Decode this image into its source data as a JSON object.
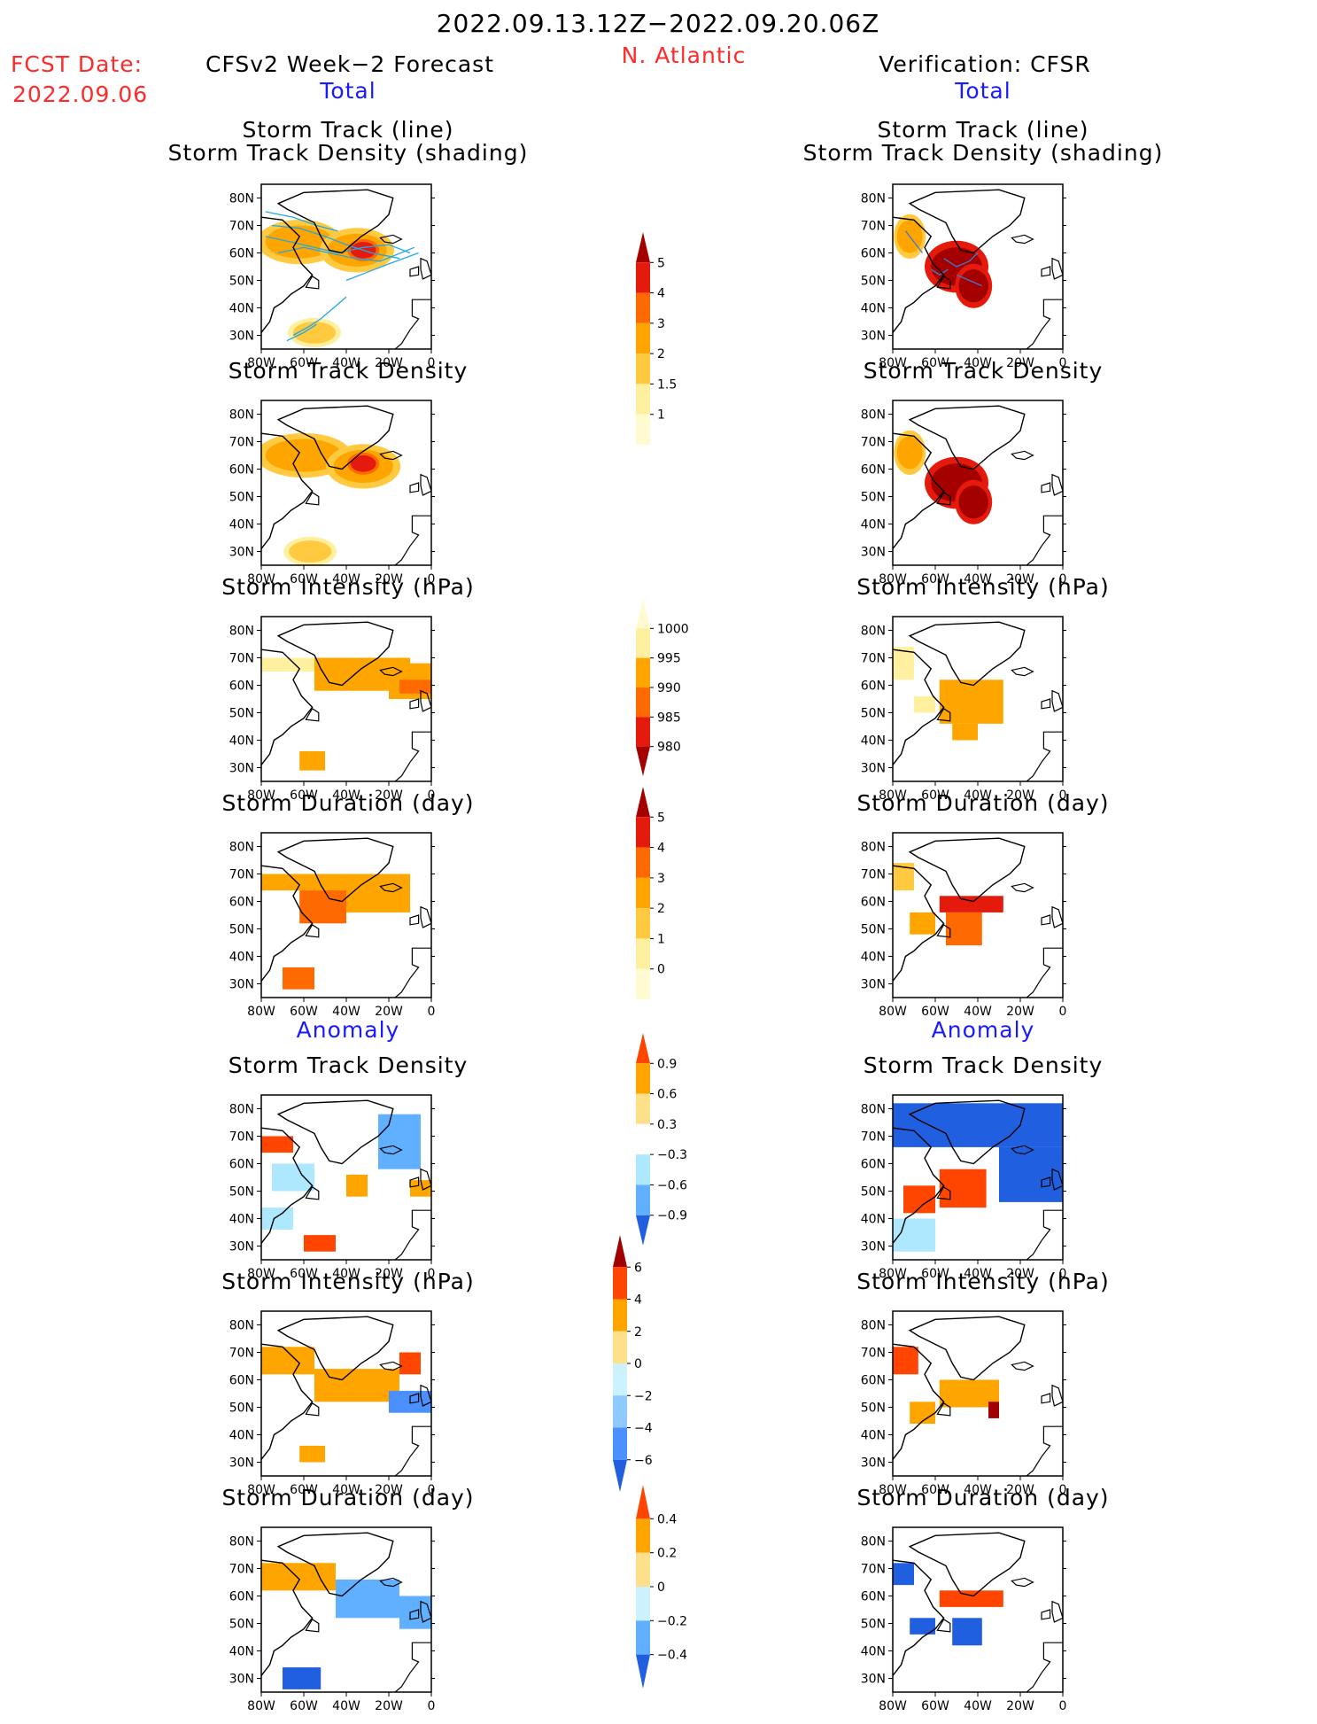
{
  "header": {
    "date_range": "2022.09.13.12Z−2022.09.20.06Z",
    "region": "N. Atlantic",
    "fcst_label": "FCST Date:",
    "fcst_date": "2022.09.06",
    "left_title": "CFSv2 Week−2 Forecast",
    "right_title": "Verification: CFSR",
    "total_left": "Total",
    "total_right": "Total",
    "anomaly_left": "Anomaly",
    "anomaly_right": "Anomaly"
  },
  "colors": {
    "title_red": "#ff2a2a",
    "title_blue": "#1a1aff"
  },
  "panels": {
    "track_line": "Storm Track (line)",
    "track_density_shading": "Storm Track Density (shading)",
    "track_density": "Storm Track Density",
    "intensity": "Storm Intensity (hPa)",
    "duration": "Storm Duration (day)"
  },
  "axes": {
    "lat_ticks": [
      "80N",
      "70N",
      "60N",
      "50N",
      "40N",
      "30N"
    ],
    "lon_ticks": [
      "80W",
      "60W",
      "40W",
      "20W",
      "0"
    ]
  },
  "colorbars": [
    {
      "name": "density",
      "labels": [
        "5",
        "4",
        "3",
        "2",
        "1.5",
        "1"
      ],
      "colors": [
        "#a50000",
        "#e41a0c",
        "#ff6a00",
        "#ffa500",
        "#ffc940",
        "#fff0a0",
        "#fffad0"
      ]
    },
    {
      "name": "intensity",
      "labels": [
        "1000",
        "995",
        "990",
        "985",
        "980"
      ],
      "colors": [
        "#fffad0",
        "#fff0a0",
        "#ffa500",
        "#ff6a00",
        "#e41a0c",
        "#a50000"
      ]
    },
    {
      "name": "duration",
      "labels": [
        "5",
        "4",
        "3",
        "2",
        "1",
        "0"
      ],
      "colors": [
        "#a50000",
        "#e41a0c",
        "#ff6a00",
        "#ffa500",
        "#ffc940",
        "#fff0a0",
        "#fffad0"
      ]
    },
    {
      "name": "density_anom",
      "labels": [
        "0.9",
        "0.6",
        "0.3",
        "−0.3",
        "−0.6",
        "−0.9"
      ],
      "colors": [
        "#ff4500",
        "#ffa500",
        "#ffe08a",
        "#ffffff",
        "#aee8ff",
        "#60b0ff",
        "#2060e0"
      ]
    },
    {
      "name": "intensity_anom",
      "labels": [
        "6",
        "4",
        "2",
        "0",
        "−2",
        "−4",
        "−6"
      ],
      "colors": [
        "#a00000",
        "#ff4500",
        "#ffa500",
        "#ffe08a",
        "#ccf2ff",
        "#8ecaff",
        "#4a90ff",
        "#2060e0"
      ]
    },
    {
      "name": "duration_anom",
      "labels": [
        "0.4",
        "0.2",
        "0",
        "−0.2",
        "−0.4"
      ],
      "colors": [
        "#ff4500",
        "#ffa500",
        "#ffe08a",
        "#ccf2ff",
        "#60b0ff",
        "#2060e0"
      ]
    }
  ],
  "chart_data": [
    {
      "type": "heatmap",
      "panel": "left-total-track",
      "title": "Storm Track (line) / Storm Track Density (shading)",
      "xlabel": "",
      "ylabel": "",
      "xlim": [
        -80,
        0
      ],
      "ylim": [
        25,
        85
      ],
      "blobs": [
        {
          "lon": -62,
          "lat": 64,
          "rx": 16,
          "ry": 6,
          "v": 2
        },
        {
          "lon": -35,
          "lat": 61,
          "rx": 14,
          "ry": 6,
          "v": 2
        },
        {
          "lon": -32,
          "lat": 61,
          "rx": 6,
          "ry": 3,
          "v": 4
        },
        {
          "lon": -55,
          "lat": 31,
          "rx": 10,
          "ry": 4,
          "v": 1.5
        }
      ]
    },
    {
      "type": "heatmap",
      "panel": "right-total-track",
      "title": "Storm Track (line) / Storm Track Density (shading)",
      "xlim": [
        -80,
        0
      ],
      "ylim": [
        25,
        85
      ],
      "blobs": [
        {
          "lon": -72,
          "lat": 66,
          "rx": 6,
          "ry": 6,
          "v": 2
        },
        {
          "lon": -50,
          "lat": 55,
          "rx": 12,
          "ry": 7,
          "v": 5
        },
        {
          "lon": -42,
          "lat": 48,
          "rx": 7,
          "ry": 6,
          "v": 5
        }
      ]
    },
    {
      "type": "heatmap",
      "panel": "left-total-density",
      "title": "Storm Track Density",
      "xlim": [
        -80,
        0
      ],
      "ylim": [
        25,
        85
      ],
      "blobs": [
        {
          "lon": -60,
          "lat": 65,
          "rx": 18,
          "ry": 6,
          "v": 2
        },
        {
          "lon": -32,
          "lat": 61,
          "rx": 14,
          "ry": 6,
          "v": 2
        },
        {
          "lon": -32,
          "lat": 62,
          "rx": 6,
          "ry": 3,
          "v": 4
        },
        {
          "lon": -57,
          "lat": 30,
          "rx": 10,
          "ry": 4,
          "v": 1.5
        }
      ]
    },
    {
      "type": "heatmap",
      "panel": "right-total-density",
      "title": "Storm Track Density",
      "xlim": [
        -80,
        0
      ],
      "ylim": [
        25,
        85
      ],
      "blobs": [
        {
          "lon": -72,
          "lat": 66,
          "rx": 6,
          "ry": 6,
          "v": 2
        },
        {
          "lon": -50,
          "lat": 55,
          "rx": 12,
          "ry": 7,
          "v": 5
        },
        {
          "lon": -42,
          "lat": 48,
          "rx": 7,
          "ry": 6,
          "v": 5
        }
      ]
    },
    {
      "type": "heatmap",
      "panel": "left-total-intensity",
      "title": "Storm Intensity (hPa)",
      "xlim": [
        -80,
        0
      ],
      "ylim": [
        25,
        85
      ],
      "blocks": [
        [
          -80,
          65,
          -55,
          70,
          997
        ],
        [
          -55,
          58,
          -10,
          70,
          992
        ],
        [
          -20,
          55,
          0,
          68,
          992
        ],
        [
          -15,
          57,
          0,
          62,
          988
        ],
        [
          -62,
          29,
          -50,
          36,
          992
        ]
      ]
    },
    {
      "type": "heatmap",
      "panel": "right-total-intensity",
      "title": "Storm Intensity (hPa)",
      "xlim": [
        -80,
        0
      ],
      "ylim": [
        25,
        85
      ],
      "blocks": [
        [
          -80,
          62,
          -70,
          74,
          997
        ],
        [
          -58,
          46,
          -28,
          62,
          992
        ],
        [
          -52,
          40,
          -40,
          46,
          992
        ],
        [
          -70,
          50,
          -60,
          56,
          997
        ]
      ]
    },
    {
      "type": "heatmap",
      "panel": "left-total-duration",
      "title": "Storm Duration (day)",
      "xlim": [
        -80,
        0
      ],
      "ylim": [
        25,
        85
      ],
      "blocks": [
        [
          -80,
          64,
          -55,
          70,
          2.5
        ],
        [
          -55,
          56,
          -10,
          70,
          2.5
        ],
        [
          -62,
          52,
          -40,
          64,
          3.5
        ],
        [
          -70,
          28,
          -55,
          36,
          3.5
        ]
      ]
    },
    {
      "type": "heatmap",
      "panel": "right-total-duration",
      "title": "Storm Duration (day)",
      "xlim": [
        -80,
        0
      ],
      "ylim": [
        25,
        85
      ],
      "blocks": [
        [
          -80,
          64,
          -70,
          74,
          1.5
        ],
        [
          -58,
          56,
          -28,
          62,
          4.5
        ],
        [
          -55,
          44,
          -38,
          56,
          3.5
        ],
        [
          -72,
          48,
          -60,
          56,
          2.5
        ]
      ]
    },
    {
      "type": "heatmap",
      "panel": "left-anom-density",
      "title": "Storm Track Density",
      "xlim": [
        -80,
        0
      ],
      "ylim": [
        25,
        85
      ],
      "blocks": [
        [
          -80,
          64,
          -65,
          70,
          0.9
        ],
        [
          -75,
          50,
          -55,
          60,
          -0.3
        ],
        [
          -40,
          48,
          -30,
          56,
          0.6
        ],
        [
          -25,
          58,
          -5,
          78,
          -0.6
        ],
        [
          -60,
          28,
          -45,
          34,
          0.9
        ],
        [
          -10,
          48,
          0,
          54,
          0.6
        ],
        [
          -80,
          36,
          -65,
          44,
          -0.3
        ]
      ]
    },
    {
      "type": "heatmap",
      "panel": "right-anom-density",
      "title": "Storm Track Density",
      "xlim": [
        -80,
        0
      ],
      "ylim": [
        25,
        85
      ],
      "blocks": [
        [
          -80,
          66,
          0,
          82,
          -0.9
        ],
        [
          -30,
          46,
          0,
          66,
          -0.9
        ],
        [
          -58,
          44,
          -36,
          58,
          0.9
        ],
        [
          -75,
          42,
          -60,
          52,
          0.9
        ],
        [
          -80,
          28,
          -60,
          40,
          -0.3
        ]
      ]
    },
    {
      "type": "heatmap",
      "panel": "left-anom-intensity",
      "title": "Storm Intensity (hPa)",
      "xlim": [
        -80,
        0
      ],
      "ylim": [
        25,
        85
      ],
      "blocks": [
        [
          -80,
          62,
          -55,
          72,
          2
        ],
        [
          -55,
          52,
          -15,
          64,
          3
        ],
        [
          -20,
          48,
          0,
          56,
          -4
        ],
        [
          -15,
          62,
          -5,
          70,
          4
        ],
        [
          -62,
          30,
          -50,
          36,
          2
        ]
      ]
    },
    {
      "type": "heatmap",
      "panel": "right-anom-intensity",
      "title": "Storm Intensity (hPa)",
      "xlim": [
        -80,
        0
      ],
      "ylim": [
        25,
        85
      ],
      "blocks": [
        [
          -80,
          62,
          -68,
          72,
          5
        ],
        [
          -58,
          50,
          -30,
          60,
          2
        ],
        [
          -35,
          46,
          -30,
          52,
          6
        ],
        [
          -72,
          44,
          -60,
          52,
          3
        ]
      ]
    },
    {
      "type": "heatmap",
      "panel": "left-anom-duration",
      "title": "Storm Duration (day)",
      "xlim": [
        -80,
        0
      ],
      "ylim": [
        25,
        85
      ],
      "blocks": [
        [
          -80,
          62,
          -45,
          72,
          0.3
        ],
        [
          -45,
          52,
          -15,
          66,
          -0.3
        ],
        [
          -15,
          48,
          0,
          60,
          -0.3
        ],
        [
          -70,
          26,
          -52,
          34,
          -0.4
        ]
      ]
    },
    {
      "type": "heatmap",
      "panel": "right-anom-duration",
      "title": "Storm Duration (day)",
      "xlim": [
        -80,
        0
      ],
      "ylim": [
        25,
        85
      ],
      "blocks": [
        [
          -80,
          64,
          -70,
          72,
          -0.4
        ],
        [
          -58,
          56,
          -28,
          62,
          0.4
        ],
        [
          -52,
          42,
          -38,
          52,
          -0.4
        ],
        [
          -72,
          46,
          -60,
          52,
          -0.4
        ]
      ]
    }
  ]
}
